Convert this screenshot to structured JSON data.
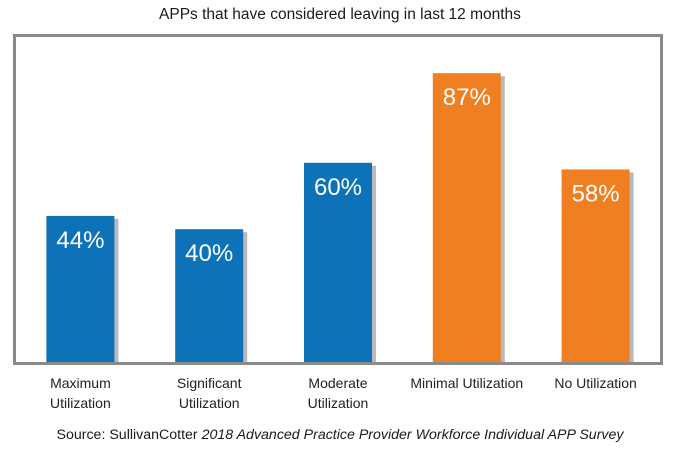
{
  "chart_data": {
    "type": "bar",
    "title": "APPs that have considered leaving in last 12 months",
    "categories": [
      [
        "Maximum",
        "Utilization"
      ],
      [
        "Significant",
        "Utilization"
      ],
      [
        "Moderate",
        "Utilization"
      ],
      [
        "Minimal Utilization"
      ],
      [
        "No Utilization"
      ]
    ],
    "values": [
      44,
      40,
      60,
      87,
      58
    ],
    "data_labels": [
      "44%",
      "40%",
      "60%",
      "87%",
      "58%"
    ],
    "bar_colors": [
      "#0e72b8",
      "#0e72b8",
      "#0e72b8",
      "#f07f21",
      "#f07f21"
    ],
    "ylim": [
      0,
      100
    ],
    "xlabel": "",
    "ylabel": "",
    "grid": false
  },
  "source": {
    "prefix": "Source: SullivanCotter ",
    "italic": "2018 Advanced Practice Provider Workforce Individual APP Survey"
  }
}
